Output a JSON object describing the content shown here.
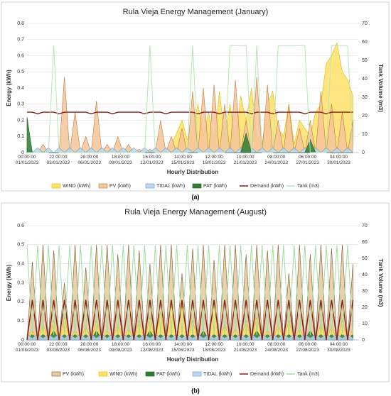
{
  "chart_data": [
    {
      "type": "line",
      "title": "Rula Vieja Energy Management (January)",
      "caption": "(a)",
      "x_label": "Hourly Distribution",
      "y_label": "Energy (kWh)",
      "y2_label": "Tank Volume (m3)",
      "xlim": [
        0,
        744
      ],
      "ylim": [
        0,
        0.8
      ],
      "y2lim": [
        0,
        70
      ],
      "grid": true,
      "xticks": [
        {
          "value": 0,
          "label": "00:00:00\n01/01/2023"
        },
        {
          "value": 70,
          "label": "22:00:00\n03/01/2023"
        },
        {
          "value": 140,
          "label": "20:00:00\n06/01/2023"
        },
        {
          "value": 210,
          "label": "18:00:00\n09/01/2023"
        },
        {
          "value": 280,
          "label": "16:00:00\n12/01/2023"
        },
        {
          "value": 350,
          "label": "14:00:00\n15/01/2023"
        },
        {
          "value": 420,
          "label": "12:00:00\n18/01/2023"
        },
        {
          "value": 490,
          "label": "10:00:00\n21/01/2023"
        },
        {
          "value": 560,
          "label": "08:00:00\n24/01/2023"
        },
        {
          "value": 630,
          "label": "06:00:00\n27/01/2023"
        },
        {
          "value": 700,
          "label": "04:00:00\n30/01/2023"
        }
      ],
      "yticks": [
        0,
        0.1,
        0.2,
        0.3,
        0.4,
        0.5,
        0.6,
        0.7,
        0.8
      ],
      "y2ticks": [
        0,
        10,
        20,
        30,
        40,
        50,
        60,
        70
      ],
      "x": [
        0,
        12,
        24,
        36,
        48,
        60,
        72,
        84,
        96,
        108,
        120,
        132,
        144,
        156,
        168,
        180,
        192,
        204,
        216,
        228,
        240,
        252,
        264,
        276,
        288,
        300,
        312,
        324,
        336,
        348,
        360,
        372,
        384,
        396,
        408,
        420,
        432,
        444,
        456,
        468,
        480,
        492,
        504,
        516,
        528,
        540,
        552,
        564,
        576,
        588,
        600,
        612,
        624,
        636,
        648,
        660,
        672,
        684,
        696,
        708,
        720,
        732
      ],
      "series": [
        {
          "name": "WIND (kWh)",
          "kind": "area",
          "color": "#ffe066",
          "border": "#e0b800",
          "values": [
            0,
            0,
            0,
            0,
            0,
            0,
            0,
            0,
            0,
            0,
            0,
            0,
            0,
            0,
            0,
            0,
            0,
            0,
            0,
            0,
            0,
            0,
            0,
            0,
            0,
            0,
            0,
            0.05,
            0.12,
            0.2,
            0.08,
            0.15,
            0.3,
            0.1,
            0.25,
            0.05,
            0.38,
            0.1,
            0.3,
            0.05,
            0.35,
            0.2,
            0.4,
            0.1,
            0.05,
            0.3,
            0.38,
            0.15,
            0.1,
            0.3,
            0.05,
            0.2,
            0.15,
            0.1,
            0.25,
            0.3,
            0.55,
            0.6,
            0.68,
            0.5,
            0.45,
            0.35
          ]
        },
        {
          "name": "PV (kWh)",
          "kind": "area",
          "color": "#f4c49a",
          "border": "#c07a3a",
          "values": [
            0,
            0,
            0,
            0.05,
            0,
            0,
            0,
            0.47,
            0,
            0.25,
            0,
            0.1,
            0,
            0.32,
            0,
            0.05,
            0,
            0.1,
            0,
            0.05,
            0,
            0.02,
            0,
            0.02,
            0,
            0.2,
            0,
            0.1,
            0,
            0.15,
            0,
            0.38,
            0,
            0.4,
            0,
            0.42,
            0,
            0.3,
            0,
            0.45,
            0,
            0.2,
            0,
            0.47,
            0,
            0.42,
            0,
            0.2,
            0,
            0.3,
            0,
            0.15,
            0,
            0.2,
            0,
            0.38,
            0,
            0.3,
            0,
            0.25,
            0,
            0.2
          ]
        },
        {
          "name": "TIDAL (kWh)",
          "kind": "area",
          "color": "#bdd7ee",
          "border": "#5b9bd5",
          "values": [
            0.03,
            0,
            0.03,
            0,
            0.03,
            0,
            0.03,
            0,
            0.03,
            0,
            0.03,
            0,
            0.03,
            0,
            0.03,
            0,
            0.03,
            0,
            0.03,
            0,
            0.03,
            0,
            0.03,
            0,
            0.03,
            0,
            0.03,
            0,
            0.03,
            0,
            0.03,
            0,
            0.03,
            0,
            0.03,
            0,
            0.03,
            0,
            0.03,
            0,
            0.03,
            0,
            0.03,
            0,
            0.03,
            0,
            0.03,
            0,
            0.03,
            0,
            0.03,
            0,
            0.03,
            0,
            0.03,
            0,
            0.03,
            0,
            0.03,
            0,
            0.03,
            0
          ]
        },
        {
          "name": "PAT (kWh)",
          "kind": "area",
          "color": "#2e7d32",
          "border": "#1b5e20",
          "values": [
            0.22,
            0,
            0,
            0,
            0,
            0,
            0,
            0,
            0,
            0,
            0,
            0,
            0,
            0,
            0,
            0,
            0,
            0,
            0,
            0,
            0,
            0,
            0,
            0,
            0,
            0,
            0,
            0,
            0,
            0,
            0,
            0,
            0,
            0,
            0,
            0,
            0,
            0,
            0,
            0,
            0,
            0.12,
            0,
            0,
            0,
            0,
            0,
            0,
            0,
            0,
            0,
            0,
            0,
            0.08,
            0,
            0,
            0,
            0,
            0,
            0,
            0,
            0
          ]
        },
        {
          "name": "Demand (kWh)",
          "kind": "line",
          "color": "#8b1a1a",
          "values": [
            0.25,
            0.25,
            0.24,
            0.25,
            0.25,
            0.25,
            0.24,
            0.25,
            0.25,
            0.25,
            0.25,
            0.25,
            0.24,
            0.25,
            0.25,
            0.25,
            0.24,
            0.25,
            0.25,
            0.25,
            0.25,
            0.25,
            0.24,
            0.25,
            0.25,
            0.25,
            0.24,
            0.25,
            0.25,
            0.25,
            0.25,
            0.25,
            0.24,
            0.25,
            0.25,
            0.25,
            0.24,
            0.25,
            0.25,
            0.25,
            0.25,
            0.25,
            0.24,
            0.25,
            0.25,
            0.25,
            0.24,
            0.25,
            0.25,
            0.25,
            0.25,
            0.25,
            0.24,
            0.25,
            0.25,
            0.25,
            0.24,
            0.25,
            0.25,
            0.25,
            0.25,
            0.25
          ]
        },
        {
          "name": "Tank (m3)",
          "kind": "line",
          "axis": "y2",
          "color": "#b9e4b9",
          "values": [
            0,
            0,
            0,
            0,
            0,
            58,
            0,
            0,
            0,
            0,
            0,
            0,
            0,
            0,
            0,
            0,
            0,
            0,
            0,
            0,
            0,
            0,
            0,
            58,
            0,
            0,
            0,
            0,
            0,
            0,
            0,
            58,
            0,
            0,
            0,
            0,
            0,
            0,
            58,
            58,
            58,
            58,
            0,
            58,
            0,
            0,
            0,
            58,
            58,
            58,
            58,
            58,
            58,
            0,
            0,
            0,
            0,
            58,
            58,
            58,
            58,
            0
          ]
        }
      ]
    },
    {
      "type": "line",
      "title": "Rula Vieja Energy Management (August)",
      "caption": "(b)",
      "x_label": "Hourly Distribution",
      "y_label": "Energy (kWh)",
      "y2_label": "Tank Volume (m3)",
      "xlim": [
        0,
        744
      ],
      "ylim": [
        0,
        0.6
      ],
      "y2lim": [
        0,
        70
      ],
      "grid": true,
      "xticks": [
        {
          "value": 0,
          "label": "00:00:00\n01/08/2023"
        },
        {
          "value": 70,
          "label": "22:00:00\n03/08/2023"
        },
        {
          "value": 140,
          "label": "20:00:00\n06/08/2023"
        },
        {
          "value": 210,
          "label": "18:00:00\n09/08/2023"
        },
        {
          "value": 280,
          "label": "16:00:00\n12/08/2023"
        },
        {
          "value": 350,
          "label": "14:00:00\n15/08/2023"
        },
        {
          "value": 420,
          "label": "12:00:00\n18/08/2023"
        },
        {
          "value": 490,
          "label": "10:00:00\n21/08/2023"
        },
        {
          "value": 560,
          "label": "08:00:00\n24/08/2023"
        },
        {
          "value": 630,
          "label": "06:00:00\n27/08/2023"
        },
        {
          "value": 700,
          "label": "04:00:00\n30/08/2023"
        }
      ],
      "yticks": [
        0,
        0.1,
        0.2,
        0.3,
        0.4,
        0.5,
        0.6
      ],
      "y2ticks": [
        0,
        10,
        20,
        30,
        40,
        50,
        60,
        70
      ],
      "x": [
        0,
        12,
        24,
        36,
        48,
        60,
        72,
        84,
        96,
        108,
        120,
        132,
        144,
        156,
        168,
        180,
        192,
        204,
        216,
        228,
        240,
        252,
        264,
        276,
        288,
        300,
        312,
        324,
        336,
        348,
        360,
        372,
        384,
        396,
        408,
        420,
        432,
        444,
        456,
        468,
        480,
        492,
        504,
        516,
        528,
        540,
        552,
        564,
        576,
        588,
        600,
        612,
        624,
        636,
        648,
        660,
        672,
        684,
        696,
        708,
        720,
        732
      ],
      "series": [
        {
          "name": "PV (kWh)",
          "kind": "area",
          "color": "#e6c9a0",
          "border": "#7a5a2a",
          "values": [
            0,
            0.41,
            0,
            0.5,
            0,
            0.47,
            0,
            0.3,
            0,
            0.5,
            0,
            0.38,
            0,
            0.5,
            0,
            0.5,
            0,
            0.45,
            0,
            0.5,
            0,
            0.47,
            0,
            0.4,
            0,
            0.5,
            0,
            0.5,
            0,
            0.35,
            0,
            0.48,
            0,
            0.5,
            0,
            0.42,
            0,
            0.5,
            0,
            0.5,
            0,
            0.45,
            0,
            0.5,
            0,
            0.47,
            0,
            0.5,
            0,
            0.35,
            0,
            0.5,
            0,
            0.45,
            0,
            0.5,
            0,
            0.48,
            0,
            0.5,
            0,
            0.4
          ]
        },
        {
          "name": "WIND (kWh)",
          "kind": "area",
          "color": "#ffe066",
          "border": "#e0b800",
          "values": [
            0,
            0.05,
            0,
            0.08,
            0,
            0.1,
            0,
            0.12,
            0,
            0.05,
            0,
            0.07,
            0,
            0.1,
            0,
            0.05,
            0,
            0.08,
            0,
            0.06,
            0,
            0.1,
            0,
            0.12,
            0,
            0.15,
            0,
            0.2,
            0,
            0.18,
            0,
            0.1,
            0,
            0.05,
            0,
            0.2,
            0,
            0.08,
            0,
            0.06,
            0,
            0.1,
            0,
            0.12,
            0,
            0.05,
            0,
            0.08,
            0,
            0.1,
            0,
            0.06,
            0,
            0.05,
            0,
            0.08,
            0,
            0.07,
            0,
            0.1,
            0,
            0.05
          ]
        },
        {
          "name": "PAT (kWh)",
          "kind": "area",
          "color": "#2e7d32",
          "border": "#1b5e20",
          "values": [
            0,
            0.03,
            0,
            0.03,
            0,
            0.05,
            0,
            0.03,
            0,
            0.03,
            0,
            0.03,
            0,
            0.05,
            0,
            0.03,
            0,
            0.03,
            0,
            0.03,
            0,
            0.03,
            0,
            0.05,
            0,
            0.03,
            0,
            0.03,
            0,
            0.03,
            0,
            0.03,
            0,
            0.05,
            0,
            0.03,
            0,
            0.03,
            0,
            0.03,
            0,
            0.03,
            0,
            0.05,
            0,
            0.03,
            0,
            0.03,
            0,
            0.03,
            0,
            0.03,
            0,
            0.05,
            0,
            0.03,
            0,
            0.03,
            0,
            0.03,
            0,
            0.03
          ]
        },
        {
          "name": "TIDAL (kWh)",
          "kind": "area",
          "color": "#bdd7ee",
          "border": "#5b9bd5",
          "values": [
            0.03,
            0.01,
            0.03,
            0.01,
            0.03,
            0.01,
            0.03,
            0.01,
            0.03,
            0.01,
            0.03,
            0.01,
            0.03,
            0.01,
            0.03,
            0.01,
            0.03,
            0.01,
            0.03,
            0.01,
            0.03,
            0.01,
            0.03,
            0.01,
            0.03,
            0.01,
            0.03,
            0.01,
            0.03,
            0.01,
            0.03,
            0.01,
            0.03,
            0.01,
            0.03,
            0.01,
            0.03,
            0.01,
            0.03,
            0.01,
            0.03,
            0.01,
            0.03,
            0.01,
            0.03,
            0.01,
            0.03,
            0.01,
            0.03,
            0.01,
            0.03,
            0.01,
            0.03,
            0.01,
            0.03,
            0.01,
            0.03,
            0.01,
            0.03,
            0.01,
            0.03,
            0.01
          ]
        },
        {
          "name": "Demand (kWh)",
          "kind": "line",
          "color": "#8b1a1a",
          "values": [
            0,
            0.21,
            0,
            0.21,
            0,
            0.21,
            0,
            0.21,
            0,
            0.21,
            0,
            0.21,
            0,
            0.21,
            0,
            0.21,
            0,
            0.21,
            0,
            0.21,
            0,
            0.21,
            0,
            0.21,
            0,
            0.21,
            0,
            0.21,
            0,
            0.21,
            0,
            0.21,
            0,
            0.21,
            0,
            0.21,
            0,
            0.21,
            0,
            0.21,
            0,
            0.21,
            0,
            0.21,
            0,
            0.21,
            0,
            0.21,
            0,
            0.21,
            0,
            0.21,
            0,
            0.21,
            0,
            0.21,
            0,
            0.21,
            0,
            0.21,
            0,
            0.21
          ]
        },
        {
          "name": "Tank (m3)",
          "kind": "line",
          "axis": "y2",
          "color": "#9fdc9f",
          "values": [
            58,
            3,
            58,
            3,
            58,
            3,
            58,
            3,
            58,
            3,
            58,
            3,
            58,
            3,
            58,
            3,
            58,
            3,
            58,
            3,
            58,
            3,
            58,
            3,
            58,
            3,
            58,
            3,
            58,
            3,
            58,
            3,
            58,
            3,
            58,
            3,
            58,
            3,
            58,
            3,
            58,
            3,
            58,
            3,
            58,
            3,
            58,
            3,
            58,
            3,
            58,
            3,
            58,
            3,
            58,
            3,
            58,
            3,
            58,
            3,
            58,
            3
          ]
        }
      ]
    }
  ]
}
